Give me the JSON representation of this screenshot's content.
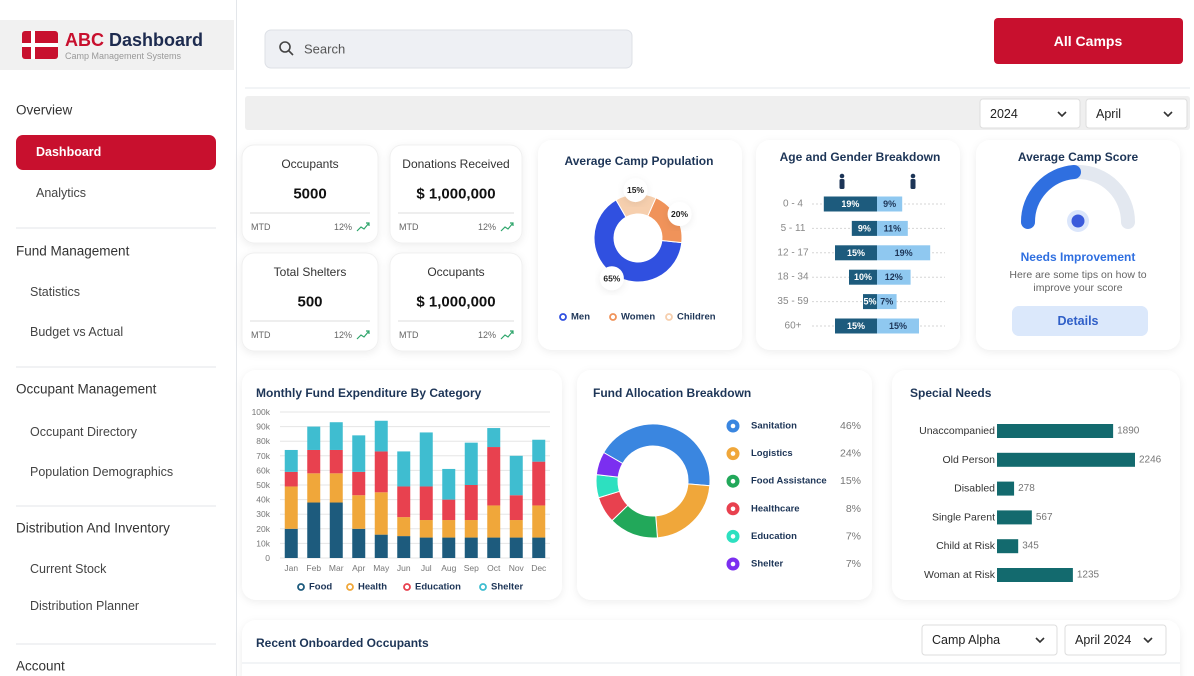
{
  "brand": {
    "abbr": "ABC",
    "name": "Dashboard",
    "subtitle": "Camp Management Systems"
  },
  "sidebar": {
    "sections": [
      {
        "title": "Overview",
        "items": [
          "Dashboard",
          "Analytics"
        ]
      },
      {
        "title": "Fund Management",
        "items": [
          "Statistics",
          "Budget vs Actual"
        ]
      },
      {
        "title": "Occupant Management",
        "items": [
          "Occupant Directory",
          "Population Demographics"
        ]
      },
      {
        "title": "Distribution And Inventory",
        "items": [
          "Current Stock",
          "Distribution Planner"
        ]
      },
      {
        "title": "Account"
      }
    ]
  },
  "search": {
    "placeholder": "Search"
  },
  "header": {
    "button": "All Camps",
    "year": "2024",
    "month": "April"
  },
  "stats": [
    {
      "label": "Occupants",
      "value": "5000",
      "period": "MTD",
      "change": "12%"
    },
    {
      "label": "Donations Received",
      "value": "$ 1,000,000",
      "period": "MTD",
      "change": "12%"
    },
    {
      "label": "Total Shelters",
      "value": "500",
      "period": "MTD",
      "change": "12%"
    },
    {
      "label": "Occupants",
      "value": "$ 1,000,000",
      "period": "MTD",
      "change": "12%"
    }
  ],
  "score_card": {
    "title": "Average Camp Score",
    "status": "Needs Improvement",
    "tip_lines": [
      "Here are some tips on how to",
      "improve your score"
    ],
    "button": "Details"
  },
  "recent": {
    "title": "Recent Onboarded Occupants",
    "camp": "Camp Alpha",
    "period": "April 2024"
  },
  "chart_data": [
    {
      "type": "donut",
      "title": "Average Camp Population",
      "categories": [
        "Men",
        "Women",
        "Children"
      ],
      "values": [
        65,
        20,
        15
      ],
      "value_labels": [
        "65%",
        "20%",
        "15%"
      ],
      "colors": [
        "#3050e0",
        "#f0935a",
        "#f6cfae"
      ]
    },
    {
      "type": "diverging_bar",
      "title": "Age and Gender Breakdown",
      "categories": [
        "0 - 4",
        "5 - 11",
        "12 - 17",
        "18 - 34",
        "35 - 59",
        "60+"
      ],
      "series": [
        {
          "color": "#1d5b7d",
          "values": [
            19,
            9,
            15,
            10,
            5,
            15
          ],
          "value_labels": [
            "19%",
            "9%",
            "15%",
            "10%",
            "5%",
            "15%"
          ]
        },
        {
          "color": "#8fc8f0",
          "values": [
            9,
            11,
            19,
            12,
            7,
            15
          ],
          "value_labels": [
            "9%",
            "11%",
            "19%",
            "12%",
            "7%",
            "15%"
          ]
        }
      ]
    },
    {
      "type": "stacked_bar",
      "title": "Monthly Fund Expenditure By Category",
      "categories": [
        "Jan",
        "Feb",
        "Mar",
        "Apr",
        "May",
        "Jun",
        "Jul",
        "Aug",
        "Sep",
        "Oct",
        "Nov",
        "Dec"
      ],
      "series": [
        {
          "name": "Food",
          "color": "#1d5b7d",
          "values": [
            20000,
            38000,
            38000,
            20000,
            16000,
            15000,
            14000,
            14000,
            14000,
            14000,
            14000,
            14000
          ]
        },
        {
          "name": "Health",
          "color": "#f0a73a",
          "values": [
            29000,
            20000,
            20000,
            23000,
            29000,
            13000,
            12000,
            12000,
            12000,
            22000,
            12000,
            22000
          ]
        },
        {
          "name": "Education",
          "color": "#e8414f",
          "values": [
            10000,
            16000,
            16000,
            16000,
            28000,
            21000,
            23000,
            14000,
            24000,
            40000,
            17000,
            30000
          ]
        },
        {
          "name": "Shelter",
          "color": "#3fbdd0",
          "values": [
            15000,
            16000,
            19000,
            25000,
            21000,
            24000,
            37000,
            21000,
            29000,
            13000,
            27000,
            15000
          ]
        }
      ],
      "ylim": [
        0,
        100000
      ],
      "yticks": [
        0,
        {
          "value": 10000,
          "label": "10k"
        },
        {
          "value": 20000,
          "label": "20k"
        },
        {
          "value": 30000,
          "label": "30k"
        },
        {
          "value": 40000,
          "label": "40k"
        },
        {
          "value": 50000,
          "label": "50k"
        },
        {
          "value": 60000,
          "label": "60k"
        },
        {
          "value": 70000,
          "label": "70k"
        },
        {
          "value": 80000,
          "label": "80k"
        },
        {
          "value": 90000,
          "label": "90k"
        },
        {
          "value": 100000,
          "label": "100k"
        }
      ],
      "grid": true
    },
    {
      "type": "donut",
      "title": "Fund Allocation Breakdown",
      "categories": [
        "Sanitation",
        "Logistics",
        "Food Assistance",
        "Healthcare",
        "Education",
        "Shelter"
      ],
      "values": [
        46,
        24,
        15,
        8,
        7,
        7
      ],
      "value_labels": [
        "46%",
        "24%",
        "15%",
        "8%",
        "7%",
        "7%"
      ],
      "colors": [
        "#3a86e0",
        "#f0a73a",
        "#22a85a",
        "#e8414f",
        "#2de0c0",
        "#7b2ff0"
      ]
    },
    {
      "type": "hbar",
      "title": "Special Needs",
      "categories": [
        "Unaccompanied",
        "Old Person",
        "Disabled",
        "Single Parent",
        "Child at Risk",
        "Woman at Risk"
      ],
      "values": [
        1890,
        2246,
        278,
        567,
        345,
        1235
      ],
      "color": "#136a6e"
    }
  ]
}
